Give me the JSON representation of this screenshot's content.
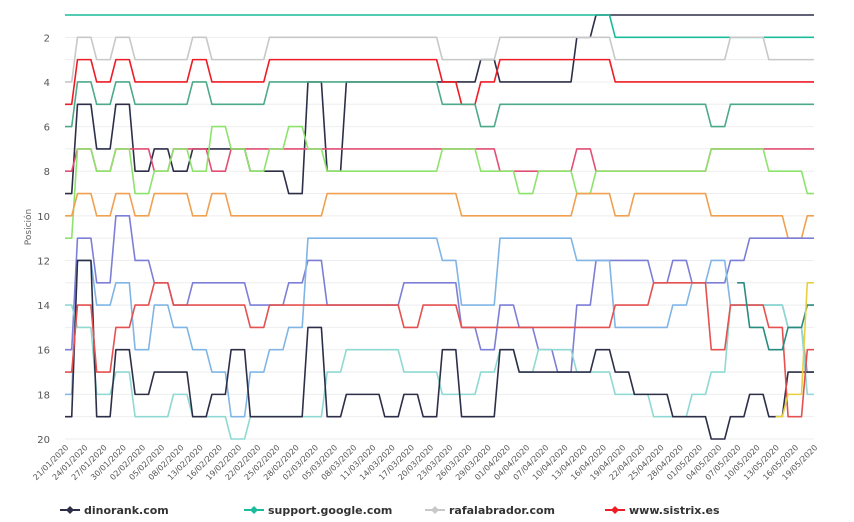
{
  "chart_data": {
    "type": "line",
    "ylabel": "Posición",
    "y_inverted": true,
    "ylim": [
      20,
      1
    ],
    "yticks": [
      2,
      4,
      6,
      8,
      10,
      12,
      14,
      16,
      18,
      20
    ],
    "grid": true,
    "legend_position": "bottom",
    "x": [
      "21/01/2020",
      "24/01/2020",
      "27/01/2020",
      "30/01/2020",
      "02/02/2020",
      "05/02/2020",
      "08/02/2020",
      "13/02/2020",
      "16/02/2020",
      "19/02/2020",
      "22/02/2020",
      "25/02/2020",
      "28/02/2020",
      "02/03/2020",
      "05/03/2020",
      "08/03/2020",
      "11/03/2020",
      "14/03/2020",
      "17/03/2020",
      "20/03/2020",
      "23/03/2020",
      "26/03/2020",
      "29/03/2020",
      "01/04/2020",
      "04/04/2020",
      "07/04/2020",
      "10/04/2020",
      "13/04/2020",
      "16/04/2020",
      "19/04/2020",
      "22/04/2020",
      "25/04/2020",
      "28/04/2020",
      "01/05/2020",
      "04/05/2020",
      "07/05/2020",
      "10/05/2020",
      "13/05/2020",
      "16/05/2020",
      "19/05/2020"
    ],
    "series": [
      {
        "name": "dinorank.com",
        "color": "#2d2f48",
        "legend": true,
        "values": [
          9,
          5,
          7,
          5,
          8,
          7,
          8,
          7,
          7,
          7,
          8,
          8,
          9,
          4,
          8,
          4,
          4,
          4,
          4,
          4,
          4,
          4,
          3,
          4,
          4,
          4,
          4,
          2,
          1,
          1,
          1,
          1,
          1,
          1,
          1,
          1,
          1,
          1,
          1,
          1
        ]
      },
      {
        "name": "support.google.com",
        "color": "#1abc9c",
        "legend": true,
        "values": [
          1,
          1,
          1,
          1,
          1,
          1,
          1,
          1,
          1,
          1,
          1,
          1,
          1,
          1,
          1,
          1,
          1,
          1,
          1,
          1,
          1,
          1,
          1,
          1,
          1,
          1,
          1,
          1,
          1,
          2,
          2,
          2,
          2,
          2,
          2,
          2,
          2,
          2,
          2,
          2
        ]
      },
      {
        "name": "rafalabrador.com",
        "color": "#c8c8c8",
        "legend": true,
        "values": [
          4,
          2,
          3,
          2,
          3,
          3,
          3,
          2,
          3,
          3,
          3,
          2,
          2,
          2,
          2,
          2,
          2,
          2,
          2,
          2,
          3,
          3,
          3,
          2,
          2,
          2,
          2,
          2,
          2,
          3,
          3,
          3,
          3,
          3,
          3,
          2,
          2,
          3,
          3,
          3
        ]
      },
      {
        "name": "www.sistrix.es",
        "color": "#ee1c25",
        "legend": true,
        "values": [
          5,
          3,
          4,
          3,
          4,
          4,
          4,
          3,
          4,
          4,
          4,
          3,
          3,
          3,
          3,
          3,
          3,
          3,
          3,
          3,
          4,
          5,
          4,
          3,
          3,
          3,
          3,
          3,
          3,
          4,
          4,
          4,
          4,
          4,
          4,
          4,
          4,
          4,
          4,
          4
        ]
      },
      {
        "name": "",
        "color": "#4daa88",
        "legend": false,
        "values": [
          6,
          4,
          5,
          4,
          5,
          5,
          5,
          4,
          5,
          5,
          5,
          4,
          4,
          4,
          4,
          4,
          4,
          4,
          4,
          4,
          5,
          5,
          6,
          5,
          5,
          5,
          5,
          5,
          5,
          5,
          5,
          5,
          5,
          5,
          6,
          5,
          5,
          5,
          5,
          5
        ]
      },
      {
        "name": "",
        "color": "#e14f75",
        "legend": false,
        "values": [
          8,
          7,
          8,
          7,
          7,
          8,
          7,
          7,
          8,
          7,
          7,
          7,
          7,
          7,
          7,
          7,
          7,
          7,
          7,
          7,
          7,
          7,
          7,
          8,
          8,
          8,
          8,
          7,
          8,
          8,
          8,
          8,
          8,
          8,
          7,
          7,
          7,
          7,
          7,
          7
        ]
      },
      {
        "name": "",
        "color": "#8ee36d",
        "legend": false,
        "values": [
          11,
          7,
          8,
          7,
          9,
          8,
          7,
          8,
          6,
          7,
          8,
          7,
          6,
          7,
          8,
          8,
          8,
          8,
          8,
          8,
          7,
          7,
          8,
          8,
          9,
          8,
          8,
          9,
          8,
          8,
          8,
          8,
          8,
          8,
          7,
          7,
          7,
          8,
          8,
          9
        ]
      },
      {
        "name": "",
        "color": "#f0a050",
        "legend": false,
        "values": [
          10,
          9,
          10,
          9,
          10,
          9,
          9,
          10,
          9,
          10,
          10,
          10,
          10,
          10,
          9,
          9,
          9,
          9,
          9,
          9,
          9,
          10,
          10,
          10,
          10,
          10,
          10,
          9,
          9,
          10,
          9,
          9,
          9,
          9,
          10,
          10,
          10,
          10,
          11,
          10
        ]
      },
      {
        "name": "",
        "color": "#7d7fd6",
        "legend": false,
        "values": [
          16,
          11,
          13,
          10,
          12,
          13,
          14,
          13,
          13,
          13,
          14,
          14,
          13,
          12,
          14,
          14,
          14,
          14,
          13,
          13,
          13,
          15,
          16,
          14,
          15,
          16,
          17,
          14,
          12,
          12,
          12,
          13,
          12,
          13,
          13,
          12,
          11,
          11,
          11,
          11
        ]
      },
      {
        "name": "",
        "color": "#81b5e5",
        "legend": false,
        "values": [
          18,
          12,
          14,
          13,
          16,
          14,
          15,
          16,
          17,
          19,
          17,
          16,
          15,
          11,
          11,
          11,
          11,
          11,
          11,
          11,
          12,
          14,
          14,
          11,
          11,
          11,
          11,
          12,
          12,
          15,
          15,
          15,
          14,
          13,
          12,
          14,
          14,
          14,
          15,
          17
        ]
      },
      {
        "name": "",
        "color": "#8fd9d2",
        "legend": false,
        "values": [
          14,
          15,
          18,
          17,
          19,
          19,
          18,
          19,
          19,
          20,
          19,
          19,
          19,
          19,
          17,
          16,
          16,
          16,
          17,
          17,
          18,
          18,
          17,
          16,
          17,
          16,
          16,
          17,
          17,
          18,
          18,
          19,
          19,
          18,
          17,
          14,
          14,
          14,
          15,
          18
        ]
      },
      {
        "name": "",
        "color": "#2d2f48",
        "legend": false,
        "values": [
          19,
          12,
          19,
          16,
          18,
          17,
          17,
          19,
          18,
          16,
          19,
          19,
          19,
          15,
          19,
          18,
          18,
          19,
          18,
          19,
          16,
          19,
          19,
          16,
          17,
          17,
          17,
          17,
          16,
          17,
          18,
          18,
          19,
          19,
          20,
          19,
          18,
          19,
          17,
          17
        ]
      },
      {
        "name": "",
        "color": "#e55050",
        "legend": false,
        "values": [
          17,
          14,
          17,
          15,
          14,
          13,
          14,
          14,
          14,
          14,
          15,
          14,
          14,
          14,
          14,
          14,
          14,
          14,
          15,
          14,
          14,
          15,
          15,
          15,
          15,
          15,
          15,
          15,
          15,
          14,
          14,
          13,
          13,
          13,
          16,
          14,
          14,
          15,
          19,
          16
        ]
      },
      {
        "name": "",
        "color": "#2a8c80",
        "legend": false,
        "values": [
          null,
          null,
          null,
          null,
          null,
          null,
          null,
          null,
          null,
          null,
          null,
          null,
          null,
          null,
          null,
          null,
          null,
          null,
          null,
          null,
          null,
          null,
          null,
          null,
          null,
          null,
          null,
          null,
          null,
          null,
          null,
          null,
          null,
          null,
          null,
          13,
          15,
          16,
          15,
          14
        ]
      },
      {
        "name": "",
        "color": "#e8d040",
        "legend": false,
        "values": [
          null,
          null,
          null,
          null,
          null,
          null,
          null,
          null,
          null,
          null,
          null,
          null,
          null,
          null,
          null,
          null,
          null,
          null,
          null,
          null,
          null,
          null,
          null,
          null,
          null,
          null,
          null,
          null,
          null,
          null,
          null,
          null,
          null,
          null,
          null,
          null,
          null,
          19,
          18,
          13
        ]
      }
    ]
  }
}
